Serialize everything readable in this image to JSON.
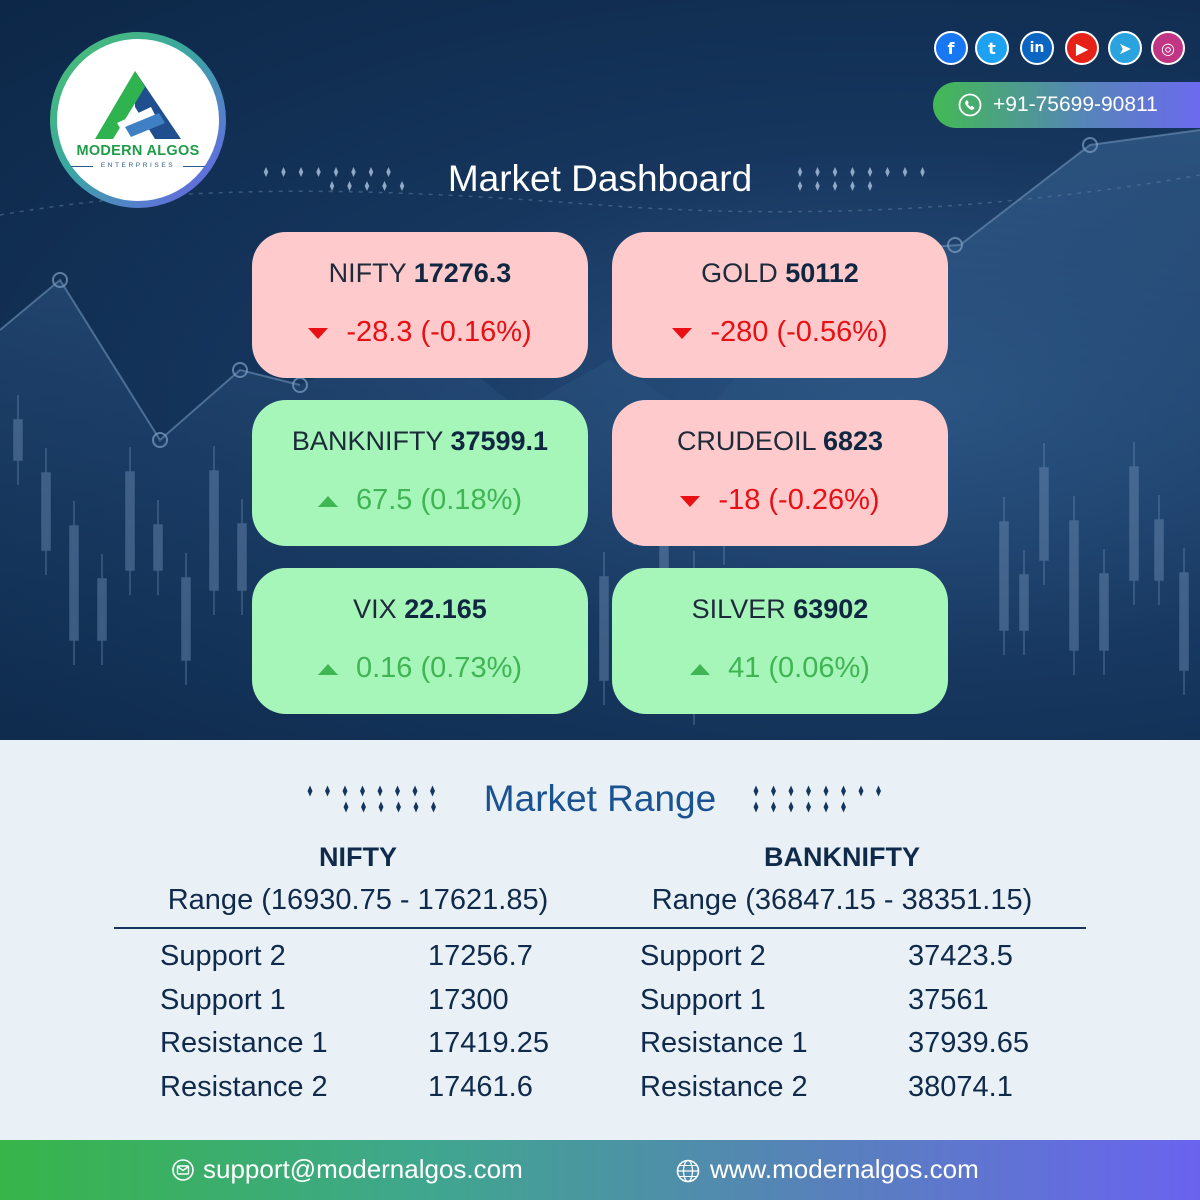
{
  "brand": {
    "name": "MODERN ALGOS",
    "tagline": "ENTERPRISES",
    "colors": {
      "green": "#1f9c48",
      "navy": "#0c2747",
      "accent": "#6e5cf0"
    }
  },
  "social": [
    {
      "name": "facebook-icon",
      "glyph": "f",
      "color": "#1877f2"
    },
    {
      "name": "twitter-icon",
      "glyph": "t",
      "color": "#1da1f2"
    },
    {
      "name": "linkedin-icon",
      "glyph": "in",
      "color": "#0a66c2"
    },
    {
      "name": "youtube-icon",
      "glyph": "▶",
      "color": "#e62117"
    },
    {
      "name": "telegram-icon",
      "glyph": "➤",
      "color": "#2aa3df"
    },
    {
      "name": "instagram-icon",
      "glyph": "◎",
      "color": "#c13584"
    }
  ],
  "contact": {
    "phone": "+91-75699-90811"
  },
  "dashboard": {
    "title": "Market Dashboard",
    "cards": [
      {
        "name": "NIFTY",
        "value": "17276.3",
        "change": "-28.3 (-0.16%)",
        "direction": "down"
      },
      {
        "name": "GOLD",
        "value": "50112",
        "change": "-280 (-0.56%)",
        "direction": "down"
      },
      {
        "name": "BANKNIFTY",
        "value": "37599.1",
        "change": "67.5 (0.18%)",
        "direction": "up"
      },
      {
        "name": "CRUDEOIL",
        "value": "6823",
        "change": "-18 (-0.26%)",
        "direction": "down"
      },
      {
        "name": "VIX",
        "value": "22.165",
        "change": "0.16 (0.73%)",
        "direction": "up"
      },
      {
        "name": "SILVER",
        "value": "63902",
        "change": "41 (0.06%)",
        "direction": "up"
      }
    ]
  },
  "range": {
    "title": "Market Range",
    "columns": [
      {
        "heading": "NIFTY",
        "range": "Range (16930.75 - 17621.85)",
        "rows": [
          {
            "label": "Support 2",
            "value": "17256.7"
          },
          {
            "label": "Support 1",
            "value": "17300"
          },
          {
            "label": "Resistance 1",
            "value": "17419.25"
          },
          {
            "label": "Resistance 2",
            "value": "17461.6"
          }
        ]
      },
      {
        "heading": "BANKNIFTY",
        "range": "Range (36847.15 - 38351.15)",
        "rows": [
          {
            "label": "Support 2",
            "value": "37423.5"
          },
          {
            "label": "Support 1",
            "value": "37561"
          },
          {
            "label": "Resistance 1",
            "value": "37939.65"
          },
          {
            "label": "Resistance 2",
            "value": "38074.1"
          }
        ]
      }
    ]
  },
  "footer": {
    "email": "support@modernalgos.com",
    "website": "www.modernalgos.com"
  }
}
